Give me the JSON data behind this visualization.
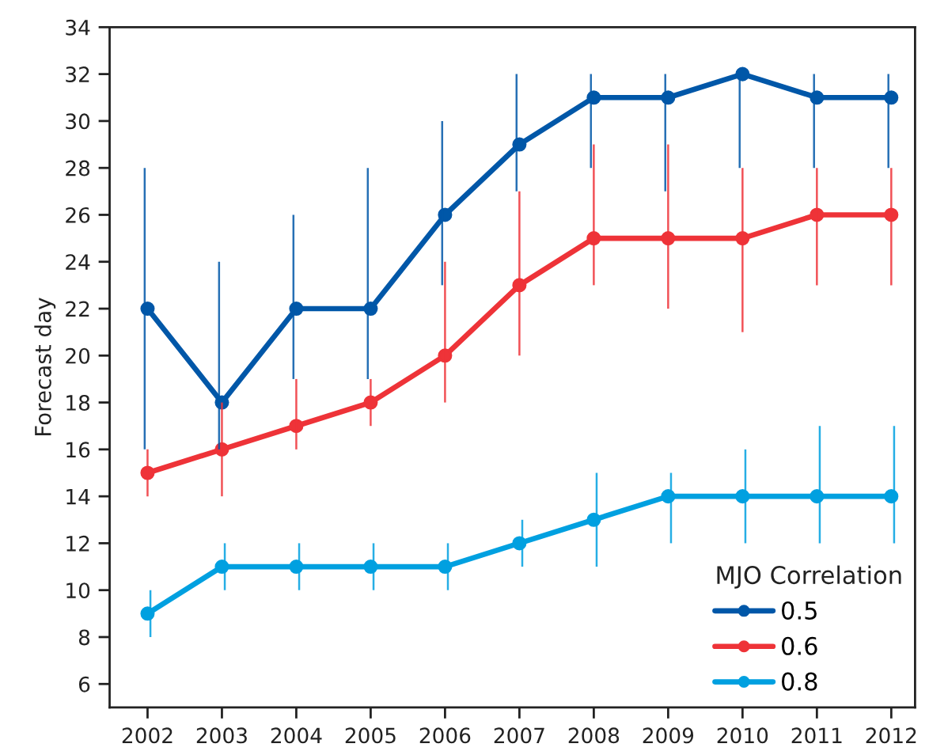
{
  "chart_data": {
    "type": "line",
    "ylabel": "Forecast day",
    "legend_title": "MJO Correlation",
    "legend": "bottom right",
    "marker": "circle",
    "line_style": "solid",
    "categories": [
      "2002",
      "2003",
      "2004",
      "2005",
      "2006",
      "2007",
      "2008",
      "2009",
      "2010",
      "2011",
      "2012"
    ],
    "ylim": [
      5,
      34
    ],
    "yticks": [
      6,
      8,
      10,
      12,
      14,
      16,
      18,
      20,
      22,
      24,
      26,
      28,
      30,
      32,
      34
    ],
    "series": [
      {
        "name": "0.5",
        "color": "#0057a8",
        "values": [
          22,
          18,
          22,
          22,
          26,
          29,
          31,
          31,
          32,
          31,
          31
        ],
        "errors": [
          [
            16,
            28
          ],
          [
            16,
            24
          ],
          [
            19,
            26
          ],
          [
            19,
            28
          ],
          [
            23,
            30
          ],
          [
            27,
            32
          ],
          [
            28,
            32
          ],
          [
            27,
            32
          ],
          [
            28,
            32
          ],
          [
            28,
            32
          ],
          [
            28,
            32
          ]
        ]
      },
      {
        "name": "0.6",
        "color": "#ee3338",
        "values": [
          15,
          16,
          17,
          18,
          20,
          23,
          25,
          25,
          25,
          26,
          26
        ],
        "errors": [
          [
            14,
            16
          ],
          [
            14,
            18
          ],
          [
            16,
            19
          ],
          [
            17,
            19
          ],
          [
            18,
            24
          ],
          [
            20,
            27
          ],
          [
            23,
            29
          ],
          [
            22,
            29
          ],
          [
            21,
            28
          ],
          [
            23,
            28
          ],
          [
            23,
            28
          ]
        ]
      },
      {
        "name": "0.8",
        "color": "#00a0e0",
        "values": [
          9,
          11,
          11,
          11,
          11,
          12,
          13,
          14,
          14,
          14,
          14
        ],
        "errors": [
          [
            8,
            10
          ],
          [
            10,
            12
          ],
          [
            10,
            12
          ],
          [
            10,
            12
          ],
          [
            10,
            12
          ],
          [
            11,
            13
          ],
          [
            11,
            15
          ],
          [
            12,
            15
          ],
          [
            12,
            16
          ],
          [
            12,
            17
          ],
          [
            12,
            17
          ]
        ]
      }
    ]
  }
}
